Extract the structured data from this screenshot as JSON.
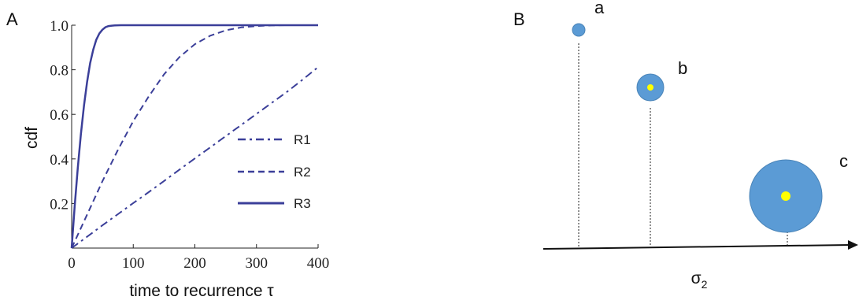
{
  "panel_a_letter": "A",
  "panel_b_letter": "B",
  "chart_data": [
    {
      "type": "line",
      "xlabel": "time to recurrence τ",
      "ylabel": "cdf",
      "xlim": [
        0,
        400
      ],
      "ylim": [
        0,
        1.0
      ],
      "xticks": [
        "0",
        "100",
        "200",
        "300",
        "400"
      ],
      "yticks": [
        "0.2",
        "0.4",
        "0.6",
        "0.8",
        "1.0"
      ],
      "legend_position": "center-right",
      "color": "#3b3f99",
      "series": [
        {
          "name": "R1",
          "style": "dash-dot",
          "x": [
            0,
            25,
            50,
            75,
            100,
            125,
            150,
            175,
            200,
            225,
            250,
            275,
            300,
            325,
            350,
            375,
            400
          ],
          "y": [
            0.0,
            0.051,
            0.102,
            0.152,
            0.202,
            0.251,
            0.301,
            0.352,
            0.402,
            0.452,
            0.502,
            0.552,
            0.602,
            0.652,
            0.702,
            0.756,
            0.812
          ]
        },
        {
          "name": "R2",
          "style": "dashed",
          "x": [
            0,
            25,
            50,
            75,
            100,
            125,
            150,
            175,
            200,
            225,
            250,
            275,
            300,
            325,
            350,
            375,
            400
          ],
          "y": [
            0.0,
            0.15,
            0.3,
            0.44,
            0.57,
            0.68,
            0.78,
            0.857,
            0.915,
            0.953,
            0.977,
            0.99,
            0.996,
            0.999,
            1.0,
            1.0,
            1.0
          ]
        },
        {
          "name": "R3",
          "style": "solid",
          "x": [
            0,
            5,
            10,
            15,
            20,
            25,
            30,
            35,
            40,
            45,
            50,
            55,
            60,
            65,
            70,
            80,
            100,
            150,
            200,
            300,
            400
          ],
          "y": [
            0.0,
            0.19,
            0.36,
            0.51,
            0.64,
            0.745,
            0.83,
            0.89,
            0.935,
            0.963,
            0.98,
            0.991,
            0.996,
            0.998,
            0.999,
            1.0,
            1.0,
            1.0,
            1.0,
            1.0,
            1.0
          ]
        }
      ]
    },
    {
      "type": "scatter",
      "xlabel": "σ2",
      "points": [
        {
          "label": "a",
          "outer_color": "#5b9bd5",
          "inner_dot": false
        },
        {
          "label": "b",
          "outer_color": "#5b9bd5",
          "inner_dot": true,
          "inner_color": "#ffff00"
        },
        {
          "label": "c",
          "outer_color": "#5b9bd5",
          "inner_dot": true,
          "inner_color": "#ffff00"
        }
      ]
    }
  ]
}
